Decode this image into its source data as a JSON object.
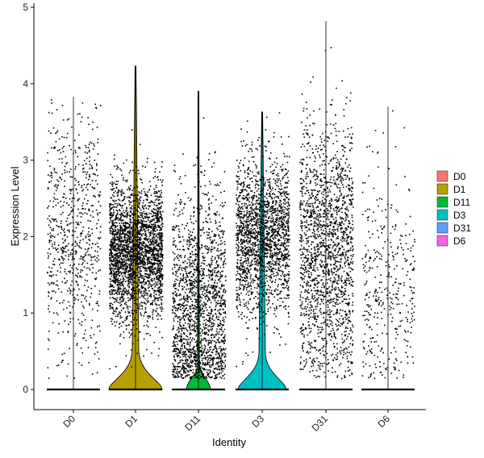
{
  "chart_data": {
    "type": "violin",
    "xlabel": "Identity",
    "ylabel": "Expression Level",
    "ylim": [
      -0.3,
      5.05
    ],
    "yticks": [
      0,
      1,
      2,
      3,
      4,
      5
    ],
    "categories": [
      "D0",
      "D1",
      "D11",
      "D3",
      "D31",
      "D6"
    ],
    "legend_position": "right",
    "grid": false,
    "series": [
      {
        "name": "D0",
        "color": "#F8766D",
        "max": 3.83,
        "zero_bulge": 0.0,
        "point_count": 700,
        "cloud_center": 2.0,
        "cloud_spread": 0.8
      },
      {
        "name": "D1",
        "color": "#B79F00",
        "max": 4.23,
        "zero_bulge": 1.0,
        "point_count": 2600,
        "cloud_center": 1.8,
        "cloud_spread": 0.45
      },
      {
        "name": "D11",
        "color": "#00BA38",
        "max": 3.9,
        "zero_bulge": 0.45,
        "point_count": 1800,
        "cloud_center": 1.0,
        "cloud_spread": 0.75
      },
      {
        "name": "D3",
        "color": "#00BFC4",
        "max": 3.63,
        "zero_bulge": 0.9,
        "point_count": 1900,
        "cloud_center": 2.0,
        "cloud_spread": 0.5
      },
      {
        "name": "D31",
        "color": "#619CFF",
        "max": 4.82,
        "zero_bulge": 0.0,
        "point_count": 1800,
        "cloud_center": 1.8,
        "cloud_spread": 0.8
      },
      {
        "name": "D6",
        "color": "#F564E3",
        "max": 3.7,
        "zero_bulge": 0.0,
        "point_count": 380,
        "cloud_center": 1.3,
        "cloud_spread": 0.75
      }
    ]
  }
}
